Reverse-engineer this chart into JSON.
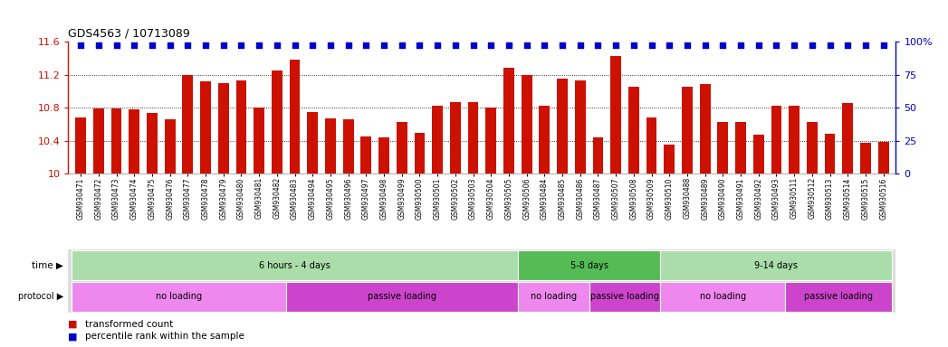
{
  "title": "GDS4563 / 10713089",
  "samples": [
    "GSM930471",
    "GSM930472",
    "GSM930473",
    "GSM930474",
    "GSM930475",
    "GSM930476",
    "GSM930477",
    "GSM930478",
    "GSM930479",
    "GSM930480",
    "GSM930481",
    "GSM930482",
    "GSM930483",
    "GSM930494",
    "GSM930495",
    "GSM930496",
    "GSM930497",
    "GSM930498",
    "GSM930499",
    "GSM930500",
    "GSM930501",
    "GSM930502",
    "GSM930503",
    "GSM930504",
    "GSM930505",
    "GSM930506",
    "GSM930484",
    "GSM930485",
    "GSM930486",
    "GSM930487",
    "GSM930507",
    "GSM930508",
    "GSM930509",
    "GSM930510",
    "GSM930488",
    "GSM930489",
    "GSM930490",
    "GSM930491",
    "GSM930492",
    "GSM930493",
    "GSM930511",
    "GSM930512",
    "GSM930513",
    "GSM930514",
    "GSM930515",
    "GSM930516"
  ],
  "bar_values": [
    10.68,
    10.79,
    10.79,
    10.78,
    10.73,
    10.66,
    11.2,
    11.12,
    11.1,
    11.13,
    10.8,
    11.25,
    11.38,
    10.75,
    10.67,
    10.66,
    10.45,
    10.44,
    10.62,
    10.49,
    10.82,
    10.87,
    10.87,
    10.8,
    11.28,
    11.2,
    10.82,
    11.15,
    11.13,
    10.44,
    11.43,
    11.05,
    10.68,
    10.35,
    11.05,
    11.09,
    10.63,
    10.63,
    10.47,
    10.82,
    10.82,
    10.63,
    10.48,
    10.85,
    10.37,
    10.38
  ],
  "percentile_values": [
    97,
    97,
    97,
    97,
    97,
    97,
    97,
    97,
    97,
    97,
    97,
    97,
    97,
    97,
    97,
    97,
    97,
    97,
    97,
    97,
    97,
    97,
    97,
    97,
    97,
    97,
    97,
    97,
    97,
    97,
    97,
    97,
    97,
    97,
    97,
    97,
    97,
    97,
    97,
    97,
    97,
    97,
    97,
    97,
    97,
    97
  ],
  "ylim": [
    10.0,
    11.6
  ],
  "yticks": [
    10.0,
    10.4,
    10.8,
    11.2,
    11.6
  ],
  "ytick_labels": [
    "10",
    "10.4",
    "10.8",
    "11.2",
    "11.6"
  ],
  "right_yticks": [
    0,
    25,
    50,
    75,
    100
  ],
  "right_ytick_labels": [
    "0",
    "25",
    "50",
    "75",
    "100%"
  ],
  "bar_color": "#cc1100",
  "dot_color": "#0000cc",
  "bg_color": "#ffffff",
  "time_groups": [
    {
      "label": "6 hours - 4 days",
      "start": 0,
      "end": 25,
      "color": "#aaddaa"
    },
    {
      "label": "5-8 days",
      "start": 25,
      "end": 33,
      "color": "#55bb55"
    },
    {
      "label": "9-14 days",
      "start": 33,
      "end": 46,
      "color": "#aaddaa"
    }
  ],
  "protocol_groups": [
    {
      "label": "no loading",
      "start": 0,
      "end": 12,
      "color": "#ee88ee"
    },
    {
      "label": "passive loading",
      "start": 12,
      "end": 25,
      "color": "#cc44cc"
    },
    {
      "label": "no loading",
      "start": 25,
      "end": 29,
      "color": "#ee88ee"
    },
    {
      "label": "passive loading",
      "start": 29,
      "end": 33,
      "color": "#cc44cc"
    },
    {
      "label": "no loading",
      "start": 33,
      "end": 40,
      "color": "#ee88ee"
    },
    {
      "label": "passive loading",
      "start": 40,
      "end": 46,
      "color": "#cc44cc"
    }
  ],
  "legend_items": [
    {
      "label": "transformed count",
      "color": "#cc1100"
    },
    {
      "label": "percentile rank within the sample",
      "color": "#0000cc"
    }
  ]
}
